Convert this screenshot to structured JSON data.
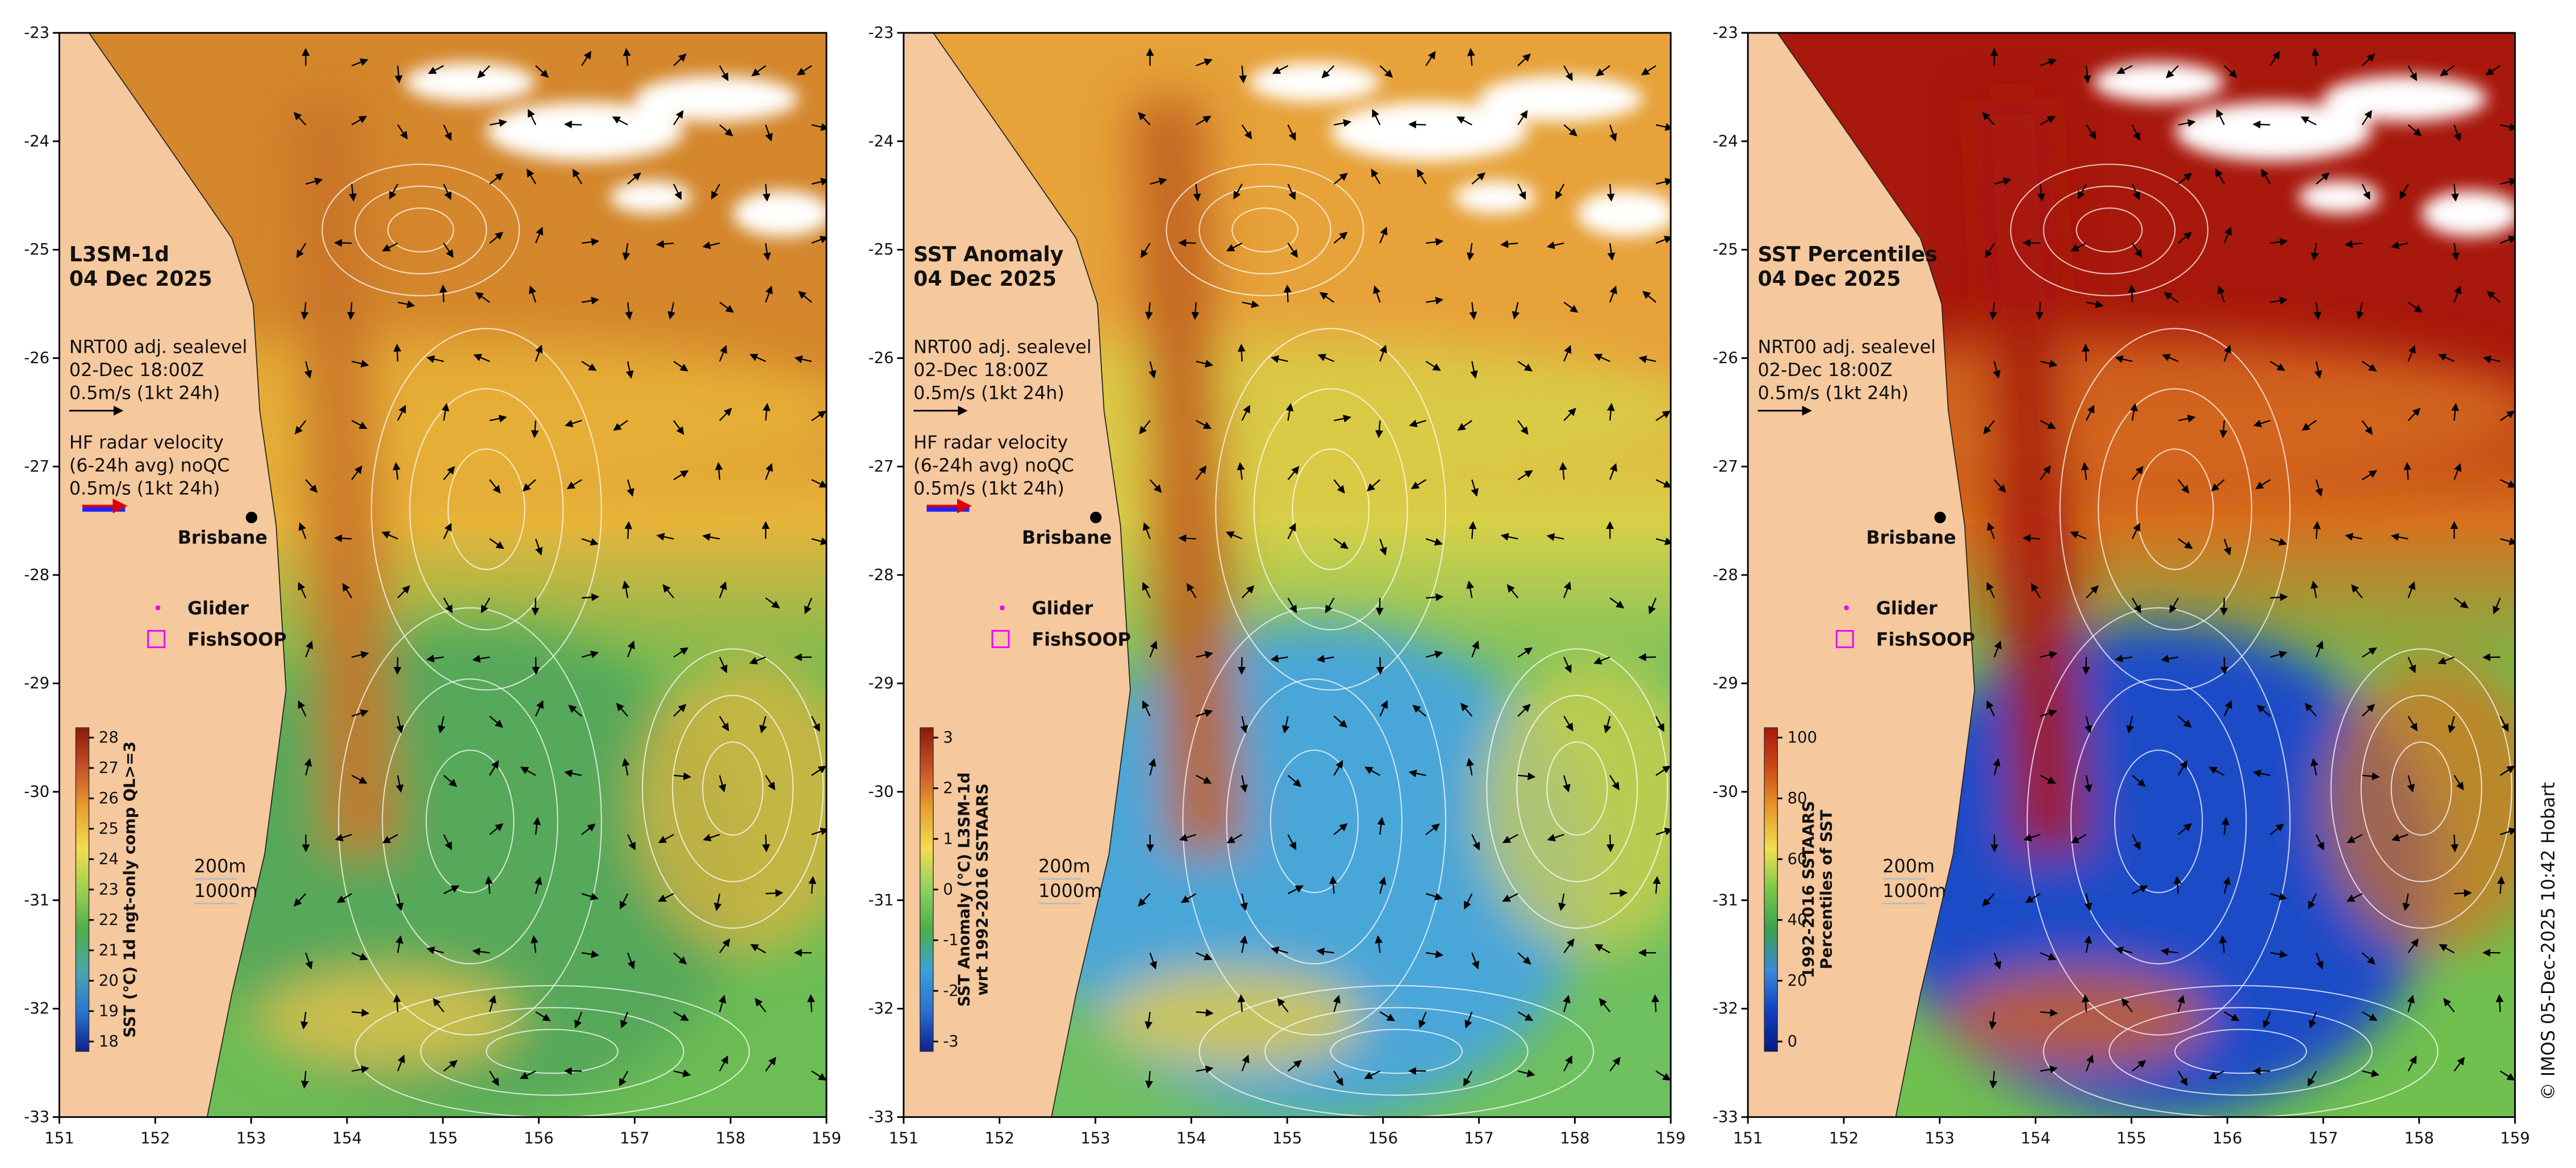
{
  "panels": [
    {
      "title": "L3SM-1d",
      "date": "04 Dec 2025",
      "sealevel": [
        "NRT00 adj. sealevel",
        "02-Dec 18:00Z",
        "0.5m/s (1kt 24h)"
      ],
      "hf_radar": [
        "HF radar velocity",
        "(6-24h avg) noQC",
        "0.5m/s (1kt 24h)"
      ],
      "city": "Brisbane",
      "glider": "Glider",
      "fishsoop": "FishSOOP",
      "depths": [
        "200m",
        "1000m"
      ],
      "colorbar_label": [
        "SST (°C) 1d ngt-only comp QL>=3"
      ],
      "colorbar_ticks": [
        28,
        27,
        26,
        25,
        24,
        23,
        22,
        21,
        20,
        19,
        18
      ]
    },
    {
      "title": "SST Anomaly",
      "date": "04 Dec 2025",
      "sealevel": [
        "NRT00 adj. sealevel",
        "02-Dec 18:00Z",
        "0.5m/s (1kt 24h)"
      ],
      "hf_radar": [
        "HF radar velocity",
        "(6-24h avg) noQC",
        "0.5m/s (1kt 24h)"
      ],
      "city": "Brisbane",
      "glider": "Glider",
      "fishsoop": "FishSOOP",
      "depths": [
        "200m",
        "1000m"
      ],
      "colorbar_label": [
        "SST Anomaly (°C) L3SM-1d",
        "wrt 1992-2016 SSTAARS"
      ],
      "colorbar_ticks": [
        3,
        2,
        1,
        0,
        -1,
        -2,
        -3
      ]
    },
    {
      "title": "SST Percentiles",
      "date": "04 Dec 2025",
      "sealevel": [
        "NRT00 adj. sealevel",
        "02-Dec 18:00Z",
        "0.5m/s (1kt 24h)"
      ],
      "city": "Brisbane",
      "glider": "Glider",
      "fishsoop": "FishSOOP",
      "depths": [
        "200m",
        "1000m"
      ],
      "colorbar_label": [
        "1992-2016 SSTAARS",
        "Percentiles of SST"
      ],
      "colorbar_ticks": [
        100,
        80,
        60,
        40,
        20,
        0
      ]
    }
  ],
  "axes": {
    "x_ticks": [
      151,
      152,
      153,
      154,
      155,
      156,
      157,
      158,
      159
    ],
    "y_ticks": [
      -23,
      -24,
      -25,
      -26,
      -27,
      -28,
      -29,
      -30,
      -31,
      -32,
      -33
    ]
  },
  "credit": "© IMOS 05-Dec-2025 10:42 Hobart"
}
